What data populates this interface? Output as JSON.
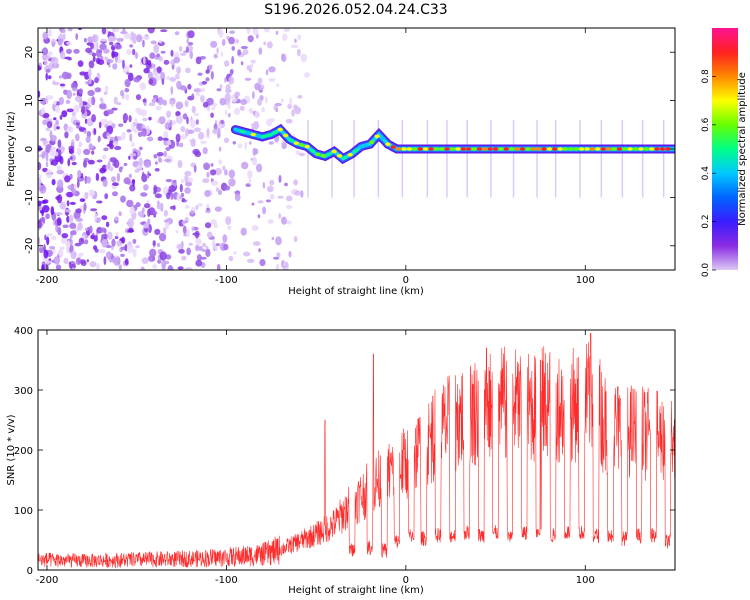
{
  "title": "S196.2026.052.04.24.C33",
  "chart_data": [
    {
      "type": "heatmap",
      "title": "S196.2026.052.04.24.C33",
      "xlabel": "Height of straight line (km)",
      "ylabel": "Frequency (Hz)",
      "xlim": [
        -205,
        150
      ],
      "ylim": [
        -25,
        25
      ],
      "xticks": [
        -200,
        -100,
        0,
        100
      ],
      "yticks": [
        -20,
        -10,
        0,
        10,
        20
      ],
      "colorbar": {
        "label": "Normalized spectral amplitude",
        "range": [
          0.0,
          1.0
        ],
        "ticks": [
          "0.0",
          "0.2",
          "0.4",
          "0.6",
          "0.8"
        ],
        "colors": [
          "#dcc8f5",
          "#8a2be2",
          "#3a1cff",
          "#0064ff",
          "#00c8ff",
          "#00ff88",
          "#66ff00",
          "#ffff00",
          "#ff8800",
          "#ff2020",
          "#ff1493"
        ]
      },
      "ridge": {
        "description": "dominant frequency track (km, Hz)",
        "x": [
          -95,
          -90,
          -85,
          -80,
          -75,
          -70,
          -65,
          -60,
          -55,
          -50,
          -45,
          -40,
          -35,
          -30,
          -25,
          -20,
          -15,
          -10,
          -5,
          0,
          50,
          100,
          150
        ],
        "y": [
          4,
          3.5,
          3,
          2.5,
          3,
          4,
          2,
          1,
          0.5,
          -1,
          -1.5,
          -0.5,
          -2,
          -1,
          0.5,
          1,
          3,
          1,
          0,
          0,
          0,
          0,
          0
        ]
      },
      "noise_region": [
        -205,
        -60
      ]
    },
    {
      "type": "line",
      "xlabel": "Height of straight line (km)",
      "ylabel": "SNR (10 * v/v)",
      "xlim": [
        -205,
        150
      ],
      "ylim": [
        0,
        400
      ],
      "xticks": [
        -200,
        -100,
        0,
        100
      ],
      "yticks": [
        0,
        100,
        200,
        300,
        400
      ],
      "color": "#ff2a2a",
      "envelope": {
        "x": [
          -205,
          -180,
          -150,
          -120,
          -100,
          -80,
          -70,
          -60,
          -50,
          -40,
          -30,
          -20,
          -10,
          0,
          10,
          20,
          30,
          40,
          50,
          60,
          70,
          80,
          90,
          100,
          105,
          110,
          120,
          130,
          140,
          150
        ],
        "y": [
          20,
          18,
          20,
          22,
          25,
          30,
          40,
          55,
          70,
          90,
          130,
          160,
          190,
          210,
          245,
          275,
          300,
          315,
          325,
          325,
          320,
          330,
          320,
          330,
          350,
          290,
          275,
          270,
          260,
          265
        ]
      },
      "dips": {
        "x": [
          -30,
          -20,
          -12,
          -5,
          3,
          10,
          18,
          26,
          34,
          42,
          50,
          58,
          66,
          74,
          82,
          90,
          98,
          106,
          114,
          122,
          130,
          138,
          146
        ],
        "y": [
          20,
          25,
          20,
          35,
          45,
          40,
          45,
          45,
          50,
          45,
          50,
          45,
          50,
          50,
          45,
          50,
          50,
          45,
          45,
          40,
          45,
          45,
          35
        ]
      },
      "spikes": {
        "x": [
          -45,
          -18,
          15,
          45,
          75,
          103
        ],
        "y": [
          250,
          360,
          290,
          370,
          350,
          395
        ]
      }
    }
  ]
}
